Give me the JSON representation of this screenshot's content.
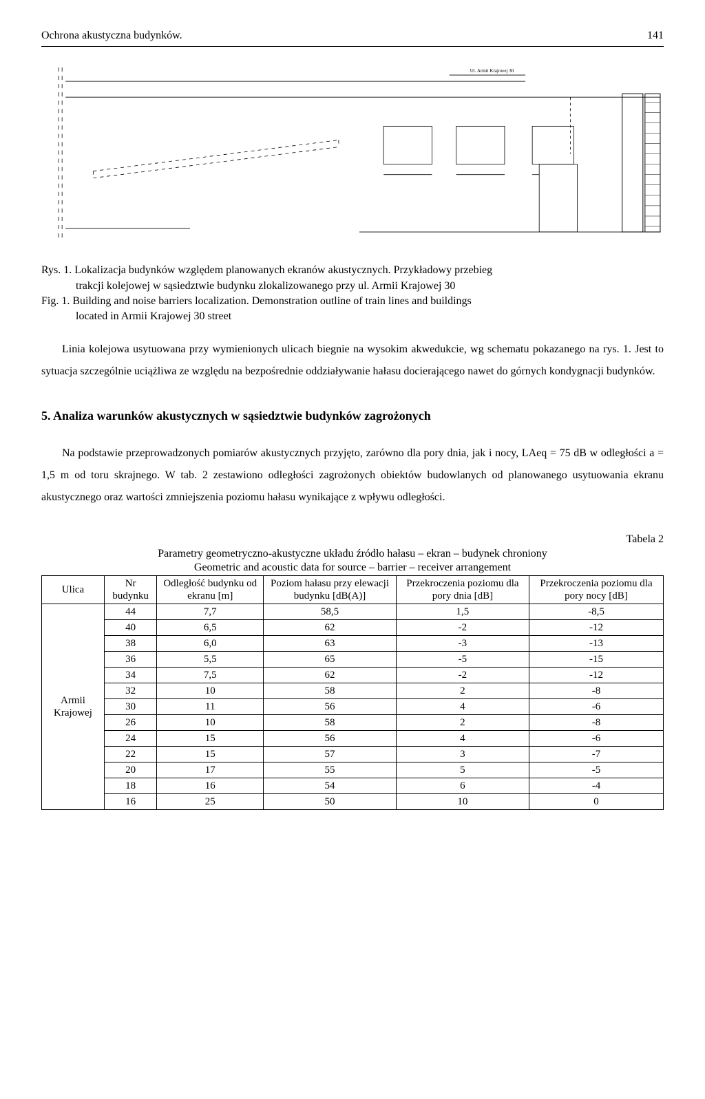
{
  "header": {
    "title": "Ochrona akustyczna budynków.",
    "page": "141"
  },
  "diagram": {
    "tiny_label": "Ul. Armii Krajowej 30"
  },
  "figure_caption": {
    "pl_line1": "Rys. 1. Lokalizacja budynków względem planowanych ekranów akustycznych. Przykładowy przebieg",
    "pl_line2": "trakcji kolejowej w sąsiedztwie budynku zlokalizowanego przy ul. Armii Krajowej 30",
    "en_line1": "Fig. 1. Building and noise barriers localization. Demonstration outline of train lines and buildings",
    "en_line2": "located in Armii Krajowej 30 street"
  },
  "paragraph1": "Linia kolejowa usytuowana przy wymienionych ulicach biegnie na wysokim akwedukcie, wg schematu pokazanego na rys. 1. Jest to sytuacja szczególnie uciążliwa ze względu na bezpośrednie oddziaływanie hałasu docierającego nawet do górnych kondygnacji budynków.",
  "section5": {
    "heading": "5. Analiza warunków akustycznych w sąsiedztwie budynków zagrożonych",
    "paragraph": "Na podstawie przeprowadzonych pomiarów akustycznych przyjęto, zarówno dla pory dnia, jak i nocy, LAeq = 75 dB w odległości a = 1,5 m od toru skrajnego. W tab. 2 zestawiono odległości zagrożonych obiektów budowlanych od planowanego usytuowania ekranu akustycznego oraz wartości zmniejszenia poziomu hałasu wynikające z wpływu odległości."
  },
  "table2": {
    "label": "Tabela 2",
    "caption_pl": "Parametry geometryczno-akustyczne układu źródło hałasu – ekran – budynek chroniony",
    "caption_en": "Geometric and acoustic data for source – barrier – receiver arrangement",
    "columns": {
      "c1": "Ulica",
      "c2": "Nr budynku",
      "c3": "Odległość budynku od ekranu [m]",
      "c4": "Poziom hałasu przy elewacji budynku [dB(A)]",
      "c5": "Przekroczenia poziomu dla pory dnia [dB]",
      "c6": "Przekroczenia poziomu dla pory nocy [dB]"
    },
    "street": "Armii Krajowej",
    "rows": [
      {
        "nr": "44",
        "dist": "7,7",
        "level": "58,5",
        "day": "1,5",
        "night": "-8,5"
      },
      {
        "nr": "40",
        "dist": "6,5",
        "level": "62",
        "day": "-2",
        "night": "-12"
      },
      {
        "nr": "38",
        "dist": "6,0",
        "level": "63",
        "day": "-3",
        "night": "-13"
      },
      {
        "nr": "36",
        "dist": "5,5",
        "level": "65",
        "day": "-5",
        "night": "-15"
      },
      {
        "nr": "34",
        "dist": "7,5",
        "level": "62",
        "day": "-2",
        "night": "-12"
      },
      {
        "nr": "32",
        "dist": "10",
        "level": "58",
        "day": "2",
        "night": "-8"
      },
      {
        "nr": "30",
        "dist": "11",
        "level": "56",
        "day": "4",
        "night": "-6"
      },
      {
        "nr": "26",
        "dist": "10",
        "level": "58",
        "day": "2",
        "night": "-8"
      },
      {
        "nr": "24",
        "dist": "15",
        "level": "56",
        "day": "4",
        "night": "-6"
      },
      {
        "nr": "22",
        "dist": "15",
        "level": "57",
        "day": "3",
        "night": "-7"
      },
      {
        "nr": "20",
        "dist": "17",
        "level": "55",
        "day": "5",
        "night": "-5"
      },
      {
        "nr": "18",
        "dist": "16",
        "level": "54",
        "day": "6",
        "night": "-4"
      },
      {
        "nr": "16",
        "dist": "25",
        "level": "50",
        "day": "10",
        "night": "0"
      }
    ]
  }
}
